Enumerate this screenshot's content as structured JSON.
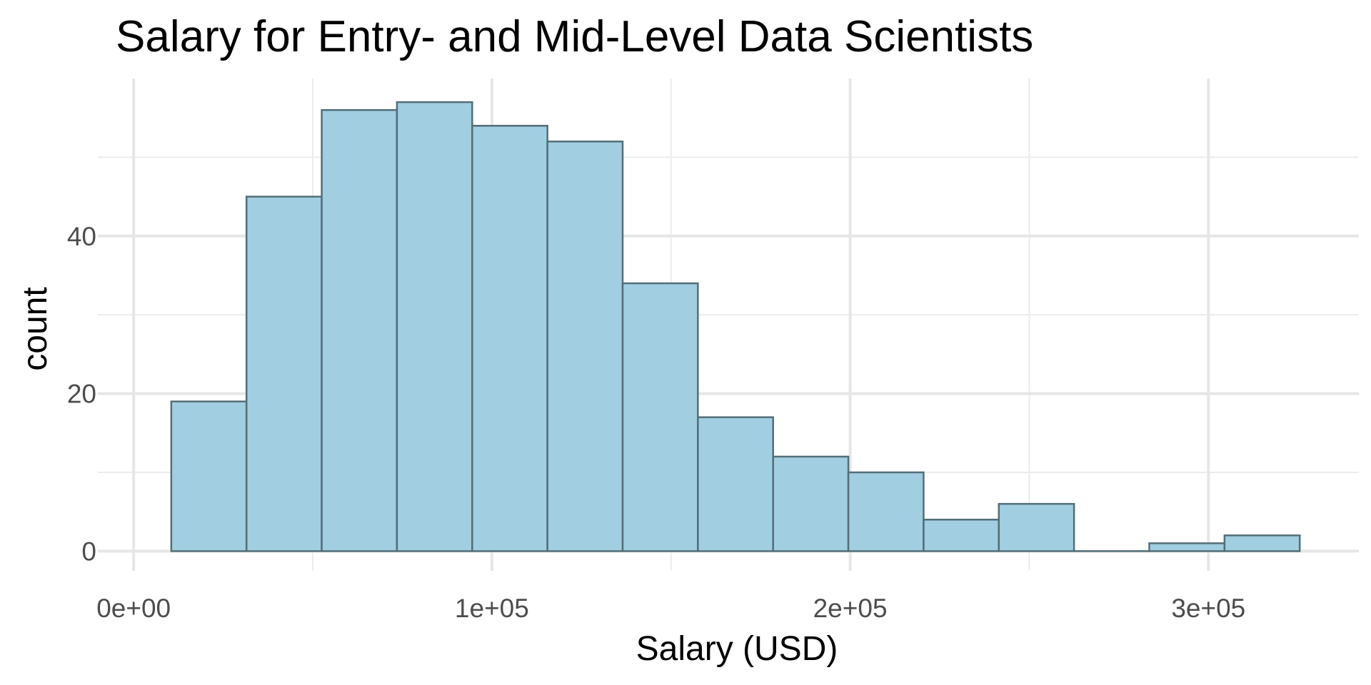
{
  "chart_data": {
    "type": "bar",
    "subtype": "histogram",
    "title": "Salary for Entry- and Mid-Level Data Scientists",
    "xlabel": "Salary (USD)",
    "ylabel": "count",
    "bin_width": 21000,
    "bins": [
      {
        "x0": 10500,
        "x1": 31500,
        "count": 19
      },
      {
        "x0": 31500,
        "x1": 52500,
        "count": 45
      },
      {
        "x0": 52500,
        "x1": 73500,
        "count": 56
      },
      {
        "x0": 73500,
        "x1": 94500,
        "count": 57
      },
      {
        "x0": 94500,
        "x1": 115500,
        "count": 54
      },
      {
        "x0": 115500,
        "x1": 136500,
        "count": 52
      },
      {
        "x0": 136500,
        "x1": 157500,
        "count": 34
      },
      {
        "x0": 157500,
        "x1": 178500,
        "count": 17
      },
      {
        "x0": 178500,
        "x1": 199500,
        "count": 12
      },
      {
        "x0": 199500,
        "x1": 220500,
        "count": 10
      },
      {
        "x0": 220500,
        "x1": 241500,
        "count": 4
      },
      {
        "x0": 241500,
        "x1": 262500,
        "count": 6
      },
      {
        "x0": 262500,
        "x1": 283500,
        "count": 0
      },
      {
        "x0": 283500,
        "x1": 304500,
        "count": 1
      },
      {
        "x0": 304500,
        "x1": 325500,
        "count": 2
      }
    ],
    "xlim": [
      -10000,
      342000
    ],
    "ylim": [
      -2.5,
      60
    ],
    "x_ticks": [
      {
        "value": 0,
        "label": "0e+00"
      },
      {
        "value": 100000,
        "label": "1e+05"
      },
      {
        "value": 200000,
        "label": "2e+05"
      },
      {
        "value": 300000,
        "label": "3e+05"
      }
    ],
    "x_minor_ticks": [
      50000,
      150000,
      250000
    ],
    "y_ticks": [
      {
        "value": 0,
        "label": "0"
      },
      {
        "value": 20,
        "label": "20"
      },
      {
        "value": 40,
        "label": "40"
      }
    ],
    "y_minor_ticks": [
      10,
      30,
      50
    ],
    "grid": true,
    "legend": "none",
    "colors": {
      "fill": "#a1cee0",
      "stroke": "#536e78"
    }
  }
}
